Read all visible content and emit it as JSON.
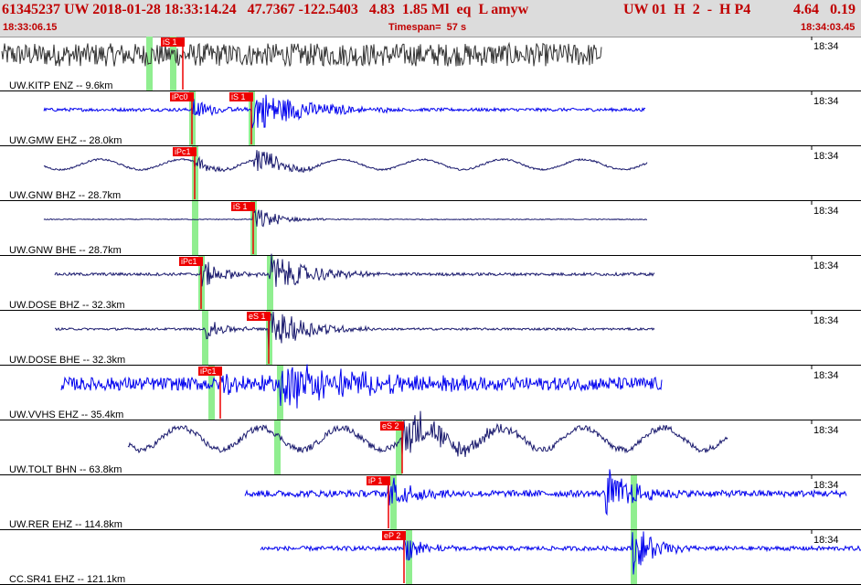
{
  "header": {
    "event_id": "61345237",
    "network": "UW",
    "datetime": "2018-01-28 18:33:14.24",
    "lat": "47.7367",
    "lon": "-122.5403",
    "depth": "4.83",
    "magnitude": "1.85 Ml",
    "type": "eq",
    "status": "L",
    "author": "amyw",
    "station_info": "UW 01  H  2  -  H P4",
    "val1": "4.64",
    "val2": "0.19",
    "start_time": "18:33:06.15",
    "timespan": "Timespan=  57 s",
    "end_time": "18:34:03.45"
  },
  "colors": {
    "pick_red": "#ee0000",
    "window_green": "#90ee90",
    "trace_black": "#333333",
    "trace_blue": "#0000ee",
    "trace_navy": "#1a1a6e",
    "title_red": "#c00000"
  },
  "panels": [
    {
      "label": "UW.KITP ENZ -- 9.6km",
      "time": "18:34",
      "color": "black",
      "amp": 14,
      "noise": 0.9,
      "start": 2,
      "end": 658,
      "bursts": [],
      "picks": [
        {
          "label": "iS 1",
          "t": 200
        }
      ],
      "greens": [
        163,
        189
      ]
    },
    {
      "label": "UW.GMW EHZ -- 28.0km",
      "time": "18:34",
      "color": "blue",
      "amp": 22,
      "noise": 0.08,
      "start": 48,
      "end": 706,
      "bursts": [
        [
          210,
          60,
          0.5
        ],
        [
          275,
          150,
          1.0
        ]
      ],
      "picks": [
        {
          "label": "iPc0",
          "t": 210
        },
        {
          "label": "iS 1",
          "t": 275
        }
      ],
      "greens": [
        210,
        275
      ]
    },
    {
      "label": "UW.GNW BHZ -- 28.7km",
      "time": "18:34",
      "color": "navy",
      "amp": 16,
      "noise": 0.06,
      "start": 48,
      "end": 708,
      "bursts": [
        [
          213,
          60,
          0.5
        ],
        [
          278,
          80,
          0.9
        ]
      ],
      "picks": [
        {
          "label": "iPc1",
          "t": 213
        }
      ],
      "greens": [
        213
      ],
      "wave": 0.35
    },
    {
      "label": "UW.GNW BHE -- 28.7km",
      "time": "18:34",
      "color": "navy",
      "amp": 12,
      "noise": 0.04,
      "start": 48,
      "end": 708,
      "bursts": [
        [
          277,
          80,
          1.0
        ]
      ],
      "picks": [
        {
          "label": "iS 1",
          "t": 277
        }
      ],
      "greens": [
        213,
        277
      ]
    },
    {
      "label": "UW.DOSE BHZ -- 32.3km",
      "time": "18:34",
      "color": "navy",
      "amp": 20,
      "noise": 0.08,
      "start": 60,
      "end": 716,
      "bursts": [
        [
          220,
          70,
          0.7
        ],
        [
          295,
          120,
          1.0
        ]
      ],
      "picks": [
        {
          "label": "iPc1",
          "t": 220
        }
      ],
      "greens": [
        220,
        295
      ]
    },
    {
      "label": "UW.DOSE BHE -- 32.3km",
      "time": "18:34",
      "color": "navy",
      "amp": 20,
      "noise": 0.06,
      "start": 60,
      "end": 716,
      "bursts": [
        [
          224,
          60,
          0.5
        ],
        [
          294,
          120,
          1.0
        ]
      ],
      "picks": [
        {
          "label": "eS 1",
          "t": 294
        }
      ],
      "greens": [
        224,
        294
      ]
    },
    {
      "label": "UW.VVHS EHZ -- 35.4km",
      "time": "18:34",
      "color": "blue",
      "amp": 24,
      "noise": 0.3,
      "start": 67,
      "end": 724,
      "bursts": [
        [
          241,
          90,
          0.5
        ],
        [
          306,
          250,
          0.9
        ]
      ],
      "picks": [
        {
          "label": "iPc1",
          "t": 241
        }
      ],
      "greens": [
        231,
        306
      ]
    },
    {
      "label": "UW.TOLT BHN -- 63.8km",
      "time": "18:34",
      "color": "navy",
      "amp": 22,
      "noise": 0.15,
      "start": 140,
      "end": 796,
      "bursts": [
        [
          440,
          150,
          1.0
        ]
      ],
      "picks": [
        {
          "label": "eS 2",
          "t": 440
        }
      ],
      "greens": [
        303,
        436
      ],
      "wave": 0.55
    },
    {
      "label": "UW.RER EHZ -- 114.8km",
      "time": "18:34",
      "color": "blue",
      "amp": 24,
      "noise": 0.15,
      "start": 268,
      "end": 926,
      "bursts": [
        [
          425,
          80,
          0.7
        ],
        [
          663,
          80,
          1.0
        ]
      ],
      "picks": [
        {
          "label": "iP 1",
          "t": 425
        }
      ],
      "greens": [
        430,
        693
      ]
    },
    {
      "label": "CC.SR41 EHZ -- 121.1km",
      "time": "18:34",
      "color": "blue",
      "amp": 24,
      "noise": 0.1,
      "start": 285,
      "end": 942,
      "bursts": [
        [
          442,
          60,
          0.6
        ],
        [
          692,
          70,
          1.0
        ]
      ],
      "picks": [
        {
          "label": "eP 2",
          "t": 442
        }
      ],
      "greens": [
        447,
        693
      ]
    }
  ]
}
